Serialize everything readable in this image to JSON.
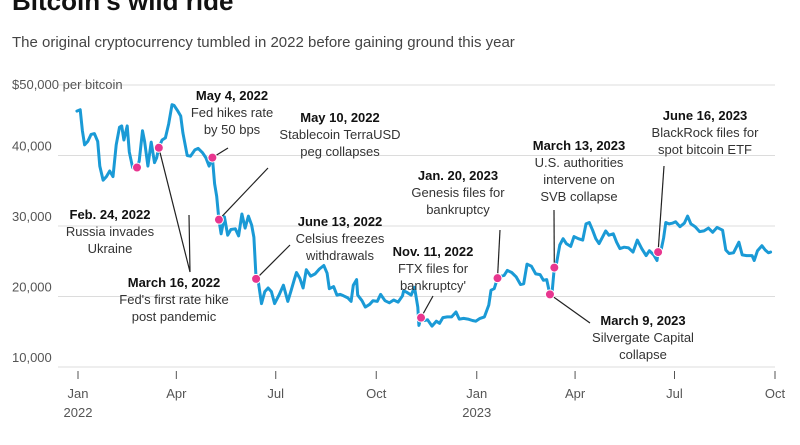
{
  "title": "Bitcoin's wild ride",
  "subtitle": "The original cryptocurrency tumbled in 2022 before gaining ground this year",
  "chart_data": {
    "type": "line",
    "ylabel": "$50,000 per bitcoin",
    "ylim": [
      10000,
      50000
    ],
    "yticks": [
      {
        "value": 40000,
        "label": "40,000"
      },
      {
        "value": 30000,
        "label": "30,000"
      },
      {
        "value": 20000,
        "label": "20,000"
      },
      {
        "value": 10000,
        "label": "10,000"
      }
    ],
    "xlim": [
      "2021-12-15",
      "2023-10-01"
    ],
    "xticks": [
      {
        "date": "2022-01-01",
        "label": "Jan",
        "year": "2022"
      },
      {
        "date": "2022-04-01",
        "label": "Apr",
        "year": ""
      },
      {
        "date": "2022-07-01",
        "label": "Jul",
        "year": ""
      },
      {
        "date": "2022-10-01",
        "label": "Oct",
        "year": ""
      },
      {
        "date": "2023-01-01",
        "label": "Jan",
        "year": "2023"
      },
      {
        "date": "2023-04-01",
        "label": "Apr",
        "year": ""
      },
      {
        "date": "2023-07-01",
        "label": "Jul",
        "year": ""
      },
      {
        "date": "2023-10-01",
        "label": "Oct",
        "year": ""
      }
    ],
    "line_color": "#1a9ad6",
    "marker_color": "#e8368f",
    "series": [
      {
        "values": [
          [
            "2021-12-31",
            46300
          ],
          [
            "2022-01-03",
            46500
          ],
          [
            "2022-01-05",
            43500
          ],
          [
            "2022-01-07",
            41500
          ],
          [
            "2022-01-10",
            42000
          ],
          [
            "2022-01-13",
            43000
          ],
          [
            "2022-01-16",
            43100
          ],
          [
            "2022-01-19",
            42000
          ],
          [
            "2022-01-21",
            38500
          ],
          [
            "2022-01-24",
            36500
          ],
          [
            "2022-01-27",
            37000
          ],
          [
            "2022-01-30",
            37800
          ],
          [
            "2022-02-02",
            37000
          ],
          [
            "2022-02-05",
            41500
          ],
          [
            "2022-02-08",
            44000
          ],
          [
            "2022-02-10",
            44200
          ],
          [
            "2022-02-12",
            42200
          ],
          [
            "2022-02-15",
            44200
          ],
          [
            "2022-02-17",
            40500
          ],
          [
            "2022-02-20",
            38300
          ],
          [
            "2022-02-22",
            38000
          ],
          [
            "2022-02-24",
            38300
          ],
          [
            "2022-02-26",
            39200
          ],
          [
            "2022-03-01",
            43500
          ],
          [
            "2022-03-03",
            42000
          ],
          [
            "2022-03-06",
            38500
          ],
          [
            "2022-03-09",
            41900
          ],
          [
            "2022-03-12",
            39000
          ],
          [
            "2022-03-14",
            39700
          ],
          [
            "2022-03-16",
            41100
          ],
          [
            "2022-03-19",
            42200
          ],
          [
            "2022-03-22",
            42500
          ],
          [
            "2022-03-25",
            44500
          ],
          [
            "2022-03-28",
            47200
          ],
          [
            "2022-03-30",
            47100
          ],
          [
            "2022-04-02",
            46400
          ],
          [
            "2022-04-05",
            45600
          ],
          [
            "2022-04-07",
            43200
          ],
          [
            "2022-04-11",
            40000
          ],
          [
            "2022-04-14",
            39900
          ],
          [
            "2022-04-18",
            40800
          ],
          [
            "2022-04-21",
            41000
          ],
          [
            "2022-04-25",
            40400
          ],
          [
            "2022-04-28",
            39700
          ],
          [
            "2022-05-01",
            38500
          ],
          [
            "2022-05-04",
            39700
          ],
          [
            "2022-05-06",
            36000
          ],
          [
            "2022-05-08",
            34200
          ],
          [
            "2022-05-10",
            30900
          ],
          [
            "2022-05-12",
            28900
          ],
          [
            "2022-05-15",
            31300
          ],
          [
            "2022-05-18",
            28700
          ],
          [
            "2022-05-21",
            29500
          ],
          [
            "2022-05-25",
            29600
          ],
          [
            "2022-05-28",
            28600
          ],
          [
            "2022-05-31",
            31700
          ],
          [
            "2022-06-03",
            29700
          ],
          [
            "2022-06-06",
            31400
          ],
          [
            "2022-06-09",
            30100
          ],
          [
            "2022-06-11",
            28400
          ],
          [
            "2022-06-13",
            22500
          ],
          [
            "2022-06-15",
            22100
          ],
          [
            "2022-06-18",
            19000
          ],
          [
            "2022-06-21",
            20700
          ],
          [
            "2022-06-24",
            21200
          ],
          [
            "2022-06-27",
            20700
          ],
          [
            "2022-06-30",
            19000
          ],
          [
            "2022-07-04",
            20200
          ],
          [
            "2022-07-08",
            21600
          ],
          [
            "2022-07-12",
            19300
          ],
          [
            "2022-07-15",
            20800
          ],
          [
            "2022-07-18",
            22400
          ],
          [
            "2022-07-20",
            23400
          ],
          [
            "2022-07-23",
            22600
          ],
          [
            "2022-07-26",
            21200
          ],
          [
            "2022-07-29",
            23800
          ],
          [
            "2022-08-02",
            22900
          ],
          [
            "2022-08-06",
            23200
          ],
          [
            "2022-08-10",
            23900
          ],
          [
            "2022-08-14",
            24400
          ],
          [
            "2022-08-17",
            23300
          ],
          [
            "2022-08-19",
            21100
          ],
          [
            "2022-08-23",
            21400
          ],
          [
            "2022-08-26",
            20200
          ],
          [
            "2022-08-29",
            20300
          ],
          [
            "2022-09-01",
            20100
          ],
          [
            "2022-09-05",
            19800
          ],
          [
            "2022-09-08",
            19300
          ],
          [
            "2022-09-10",
            21600
          ],
          [
            "2022-09-13",
            22400
          ],
          [
            "2022-09-14",
            20200
          ],
          [
            "2022-09-18",
            19400
          ],
          [
            "2022-09-21",
            18500
          ],
          [
            "2022-09-25",
            18900
          ],
          [
            "2022-09-28",
            19400
          ],
          [
            "2022-10-02",
            19300
          ],
          [
            "2022-10-05",
            20300
          ],
          [
            "2022-10-09",
            19400
          ],
          [
            "2022-10-13",
            19100
          ],
          [
            "2022-10-17",
            19500
          ],
          [
            "2022-10-21",
            19200
          ],
          [
            "2022-10-25",
            20100
          ],
          [
            "2022-10-26",
            20800
          ],
          [
            "2022-10-29",
            20600
          ],
          [
            "2022-11-02",
            20200
          ],
          [
            "2022-11-05",
            21300
          ],
          [
            "2022-11-08",
            18500
          ],
          [
            "2022-11-09",
            15900
          ],
          [
            "2022-11-11",
            17000
          ],
          [
            "2022-11-14",
            16600
          ],
          [
            "2022-11-17",
            16700
          ],
          [
            "2022-11-21",
            15800
          ],
          [
            "2022-11-25",
            16500
          ],
          [
            "2022-11-28",
            16200
          ],
          [
            "2022-12-01",
            17000
          ],
          [
            "2022-12-05",
            17100
          ],
          [
            "2022-12-09",
            17100
          ],
          [
            "2022-12-13",
            17800
          ],
          [
            "2022-12-16",
            16800
          ],
          [
            "2022-12-20",
            16900
          ],
          [
            "2022-12-24",
            16800
          ],
          [
            "2022-12-28",
            16600
          ],
          [
            "2022-12-31",
            16500
          ],
          [
            "2023-01-04",
            16900
          ],
          [
            "2023-01-08",
            17100
          ],
          [
            "2023-01-12",
            18800
          ],
          [
            "2023-01-14",
            20900
          ],
          [
            "2023-01-17",
            21100
          ],
          [
            "2023-01-20",
            22600
          ],
          [
            "2023-01-23",
            22900
          ],
          [
            "2023-01-26",
            23000
          ],
          [
            "2023-01-29",
            23700
          ],
          [
            "2023-02-02",
            23400
          ],
          [
            "2023-02-06",
            22800
          ],
          [
            "2023-02-10",
            21700
          ],
          [
            "2023-02-13",
            21800
          ],
          [
            "2023-02-16",
            24600
          ],
          [
            "2023-02-20",
            24300
          ],
          [
            "2023-02-24",
            23200
          ],
          [
            "2023-02-28",
            23100
          ],
          [
            "2023-03-03",
            22300
          ],
          [
            "2023-03-06",
            22400
          ],
          [
            "2023-03-09",
            20300
          ],
          [
            "2023-03-11",
            20600
          ],
          [
            "2023-03-13",
            24100
          ],
          [
            "2023-03-15",
            24700
          ],
          [
            "2023-03-18",
            27300
          ],
          [
            "2023-03-21",
            28200
          ],
          [
            "2023-03-24",
            27500
          ],
          [
            "2023-03-28",
            27100
          ],
          [
            "2023-03-31",
            28500
          ],
          [
            "2023-04-04",
            28200
          ],
          [
            "2023-04-08",
            28000
          ],
          [
            "2023-04-11",
            30300
          ],
          [
            "2023-04-14",
            30500
          ],
          [
            "2023-04-17",
            29400
          ],
          [
            "2023-04-20",
            28200
          ],
          [
            "2023-04-23",
            27500
          ],
          [
            "2023-04-26",
            28400
          ],
          [
            "2023-04-29",
            29300
          ],
          [
            "2023-05-02",
            28700
          ],
          [
            "2023-05-06",
            28900
          ],
          [
            "2023-05-09",
            27700
          ],
          [
            "2023-05-12",
            26800
          ],
          [
            "2023-05-16",
            27000
          ],
          [
            "2023-05-20",
            26900
          ],
          [
            "2023-05-24",
            26300
          ],
          [
            "2023-05-28",
            28000
          ],
          [
            "2023-06-01",
            26800
          ],
          [
            "2023-06-05",
            25800
          ],
          [
            "2023-06-08",
            26500
          ],
          [
            "2023-06-12",
            25900
          ],
          [
            "2023-06-15",
            25100
          ],
          [
            "2023-06-16",
            26300
          ],
          [
            "2023-06-19",
            26800
          ],
          [
            "2023-06-21",
            28300
          ],
          [
            "2023-06-23",
            30500
          ],
          [
            "2023-06-26",
            30300
          ],
          [
            "2023-06-29",
            30400
          ],
          [
            "2023-07-02",
            30600
          ],
          [
            "2023-07-06",
            29900
          ],
          [
            "2023-07-10",
            30400
          ],
          [
            "2023-07-13",
            31400
          ],
          [
            "2023-07-16",
            30300
          ],
          [
            "2023-07-20",
            29900
          ],
          [
            "2023-07-24",
            29200
          ],
          [
            "2023-07-28",
            29300
          ],
          [
            "2023-08-01",
            29700
          ],
          [
            "2023-08-05",
            29100
          ],
          [
            "2023-08-09",
            29800
          ],
          [
            "2023-08-14",
            29400
          ],
          [
            "2023-08-17",
            26600
          ],
          [
            "2023-08-20",
            26100
          ],
          [
            "2023-08-24",
            26200
          ],
          [
            "2023-08-29",
            27700
          ],
          [
            "2023-09-01",
            25900
          ],
          [
            "2023-09-05",
            25800
          ],
          [
            "2023-09-10",
            25800
          ],
          [
            "2023-09-12",
            25100
          ],
          [
            "2023-09-15",
            26500
          ],
          [
            "2023-09-19",
            27200
          ],
          [
            "2023-09-22",
            26600
          ],
          [
            "2023-09-25",
            26200
          ],
          [
            "2023-09-27",
            26300
          ]
        ]
      }
    ],
    "annotations": [
      {
        "date": "2022-02-24",
        "value": 38300,
        "label_date": "Feb. 24, 2022",
        "lines": [
          "Russia invades",
          "Ukraine"
        ]
      },
      {
        "date": "2022-03-16",
        "value": 41100,
        "label_date": "March 16, 2022",
        "lines": [
          "Fed's first rate hike",
          "post pandemic"
        ]
      },
      {
        "date": "2022-05-04",
        "value": 39700,
        "label_date": "May 4, 2022",
        "lines": [
          "Fed hikes rate",
          "by 50 bps"
        ]
      },
      {
        "date": "2022-05-10",
        "value": 30900,
        "label_date": "May 10, 2022",
        "lines": [
          "Stablecoin TerraUSD",
          "peg collapses"
        ]
      },
      {
        "date": "2022-06-13",
        "value": 22500,
        "label_date": "June 13, 2022",
        "lines": [
          "Celsius freezes",
          "withdrawals"
        ]
      },
      {
        "date": "2022-11-11",
        "value": 17000,
        "label_date": "Nov. 11, 2022",
        "lines": [
          "FTX files for",
          "bankruptcy'"
        ]
      },
      {
        "date": "2023-01-20",
        "value": 22600,
        "label_date": "Jan. 20, 2023",
        "lines": [
          "Genesis files for",
          "bankruptcy"
        ]
      },
      {
        "date": "2023-03-09",
        "value": 20300,
        "label_date": "March 9, 2023",
        "lines": [
          "Silvergate Capital",
          "collapse"
        ]
      },
      {
        "date": "2023-03-13",
        "value": 24100,
        "label_date": "March 13, 2023",
        "lines": [
          "U.S. authorities",
          "intervene on",
          "SVB collapse"
        ]
      },
      {
        "date": "2023-06-16",
        "value": 26300,
        "label_date": "June 16, 2023",
        "lines": [
          "BlackRock files for",
          "spot bitcoin ETF"
        ]
      }
    ]
  }
}
